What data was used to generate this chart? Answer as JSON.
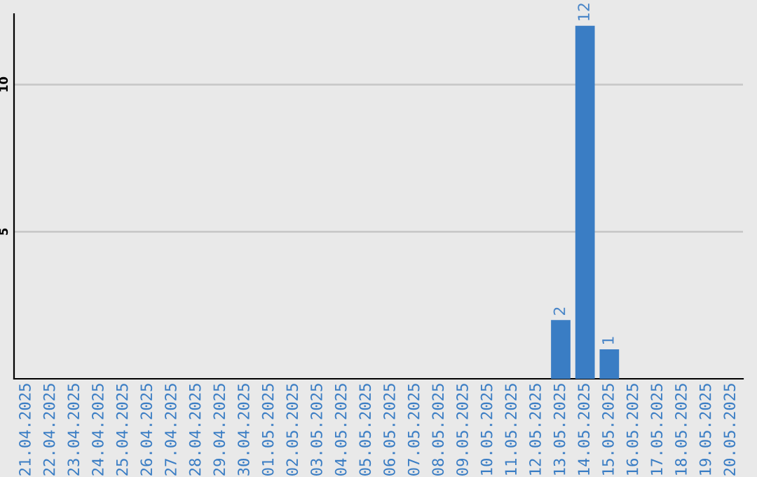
{
  "chart_data": {
    "type": "bar",
    "categories": [
      "21.04.2025",
      "22.04.2025",
      "23.04.2025",
      "24.04.2025",
      "25.04.2025",
      "26.04.2025",
      "27.04.2025",
      "28.04.2025",
      "29.04.2025",
      "30.04.2025",
      "01.05.2025",
      "02.05.2025",
      "03.05.2025",
      "04.05.2025",
      "05.05.2025",
      "06.05.2025",
      "07.05.2025",
      "08.05.2025",
      "09.05.2025",
      "10.05.2025",
      "11.05.2025",
      "12.05.2025",
      "13.05.2025",
      "14.05.2025",
      "15.05.2025",
      "16.05.2025",
      "17.05.2025",
      "18.05.2025",
      "19.05.2025",
      "20.05.2025"
    ],
    "values": [
      0,
      0,
      0,
      0,
      0,
      0,
      0,
      0,
      0,
      0,
      0,
      0,
      0,
      0,
      0,
      0,
      0,
      0,
      0,
      0,
      0,
      0,
      2,
      12,
      1,
      0,
      0,
      0,
      0,
      0
    ],
    "value_labels": [
      null,
      null,
      null,
      null,
      null,
      null,
      null,
      null,
      null,
      null,
      null,
      null,
      null,
      null,
      null,
      null,
      null,
      null,
      null,
      null,
      null,
      null,
      "2",
      "12",
      "1",
      null,
      null,
      null,
      null,
      null
    ],
    "color": "#3a7dc4",
    "ylim": [
      0,
      12.4
    ],
    "yticks": [
      5,
      10
    ],
    "grid": "y"
  }
}
